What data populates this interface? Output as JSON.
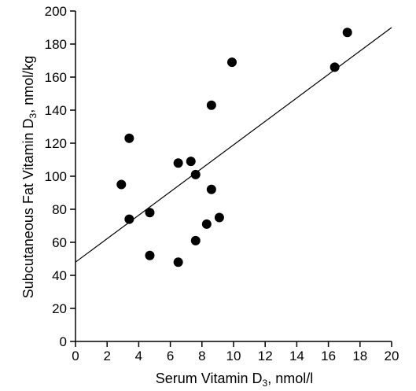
{
  "chart_data": {
    "type": "scatter",
    "title": "",
    "xlabel": {
      "main": "Serum Vitamin D",
      "sub": "3",
      "unit": ", nmol/l"
    },
    "ylabel": {
      "main": "Subcutaneous Fat Vitamin D",
      "sub": "3",
      "unit": ", nmol/kg"
    },
    "xlim": [
      0,
      20
    ],
    "ylim": [
      0,
      200
    ],
    "xticks": [
      0,
      2,
      4,
      6,
      8,
      10,
      12,
      14,
      16,
      18,
      20
    ],
    "yticks": [
      0,
      20,
      40,
      60,
      80,
      100,
      120,
      140,
      160,
      180,
      200
    ],
    "grid": false,
    "legend": "none",
    "point_color": "#000000",
    "series": [
      {
        "points": [
          [
            2.9,
            95
          ],
          [
            3.4,
            123
          ],
          [
            3.4,
            74
          ],
          [
            4.7,
            78
          ],
          [
            4.7,
            52
          ],
          [
            6.5,
            108
          ],
          [
            6.5,
            48
          ],
          [
            7.3,
            109
          ],
          [
            7.6,
            101
          ],
          [
            7.6,
            61
          ],
          [
            8.3,
            71
          ],
          [
            8.6,
            143
          ],
          [
            8.6,
            92
          ],
          [
            9.1,
            75
          ],
          [
            9.9,
            169
          ],
          [
            16.4,
            166
          ],
          [
            17.2,
            187
          ]
        ]
      }
    ],
    "fit_line": {
      "x": [
        0,
        20
      ],
      "y": [
        48,
        190
      ]
    }
  }
}
